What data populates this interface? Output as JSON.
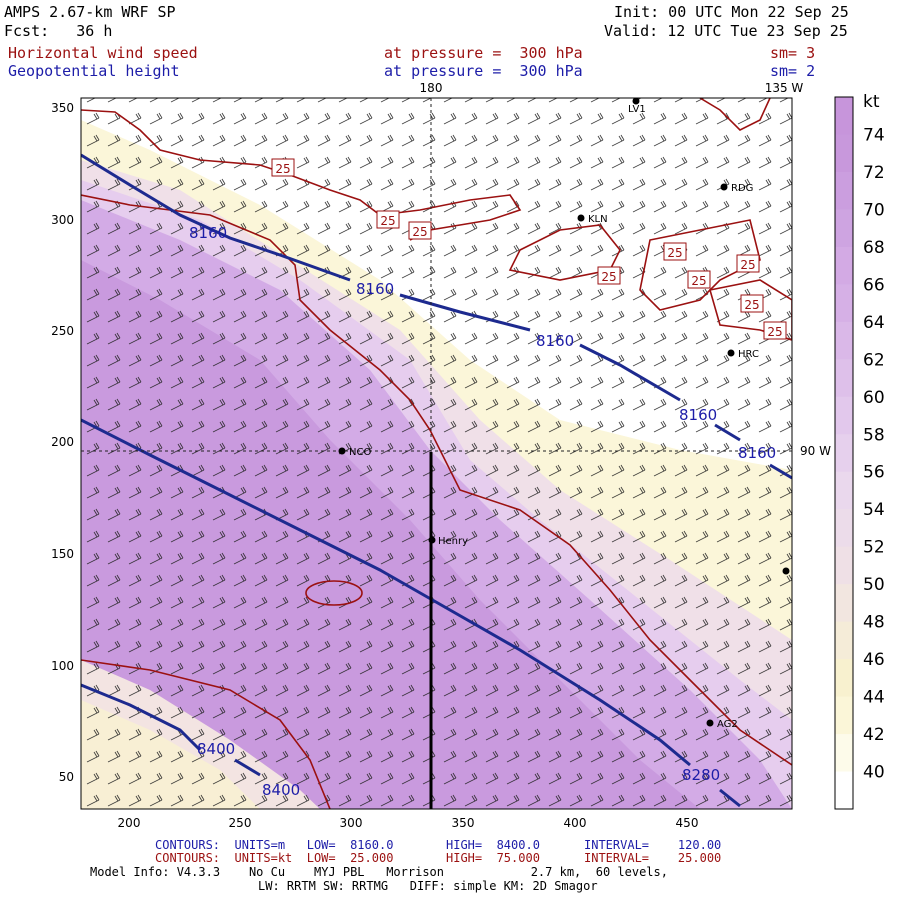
{
  "header": {
    "model": "AMPS 2.67-km WRF SP",
    "forecast": "Fcst:   36 h",
    "init": "Init: 00 UTC Mon 22 Sep 25",
    "valid": "Valid: 12 UTC Tue 23 Sep 25",
    "field1": "Horizontal wind speed",
    "field1_level": "at pressure =  300 hPa",
    "field1_sm": "sm= 3",
    "field2": "Geopotential height",
    "field2_level": "at pressure =  300 hPa",
    "field2_sm": "sm= 2"
  },
  "map": {
    "x_ticks": [
      "200",
      "250",
      "300",
      "350",
      "400",
      "450"
    ],
    "y_ticks": [
      "350",
      "300",
      "250",
      "200",
      "150",
      "100",
      "50"
    ],
    "meridian_180": "180",
    "meridian_135w": "135 W",
    "meridian_90w": "90 W",
    "stations": [
      {
        "id": "LV1",
        "label": "LV1"
      },
      {
        "id": "RDG",
        "label": "RDG"
      },
      {
        "id": "KLN",
        "label": "KLN"
      },
      {
        "id": "HRC",
        "label": "HRC"
      },
      {
        "id": "NCO",
        "label": "NCO"
      },
      {
        "id": "Henry",
        "label": "Henry"
      },
      {
        "id": "AG2",
        "label": "AG2"
      }
    ],
    "height_labels": [
      "8160",
      "8160",
      "8160",
      "8160",
      "8160",
      "8400",
      "8400",
      "8280"
    ],
    "speed_labels": [
      "25",
      "25",
      "25",
      "25",
      "25",
      "25",
      "25",
      "25",
      "25"
    ]
  },
  "colorbar": {
    "unit": "kt",
    "levels": [
      "74",
      "72",
      "70",
      "68",
      "66",
      "64",
      "62",
      "60",
      "58",
      "56",
      "54",
      "52",
      "50",
      "48",
      "46",
      "44",
      "42",
      "40"
    ],
    "colors_top_to_bottom": [
      "#c795db",
      "#c898dc",
      "#cb9edf",
      "#cea4e1",
      "#d3aae4",
      "#d6b0e6",
      "#dab8e8",
      "#dec0ea",
      "#e2c8ec",
      "#e6d0ed",
      "#ead8ed",
      "#ecdcea",
      "#efe0e6",
      "#f2e6e0",
      "#f5ecd8",
      "#f8f1cf",
      "#fbf6d8",
      "#fdfbea",
      "#ffffff"
    ]
  },
  "footer": {
    "line1_a": "CONTOURS:  UNITS=m   LOW=  8160.0",
    "line1_b": "HIGH=  8400.0",
    "line1_c": "INTERVAL=    120.00",
    "line2_a": "CONTOURS:  UNITS=kt  LOW=  25.000",
    "line2_b": "HIGH=  75.000",
    "line2_c": "INTERVAL=    25.000",
    "line3": "Model Info: V4.3.3    No Cu    MYJ PBL   Morrison            2.7 km,  60 levels,",
    "line4": "LW: RRTM SW: RRTMG   DIFF: simple KM: 2D Smagor"
  }
}
